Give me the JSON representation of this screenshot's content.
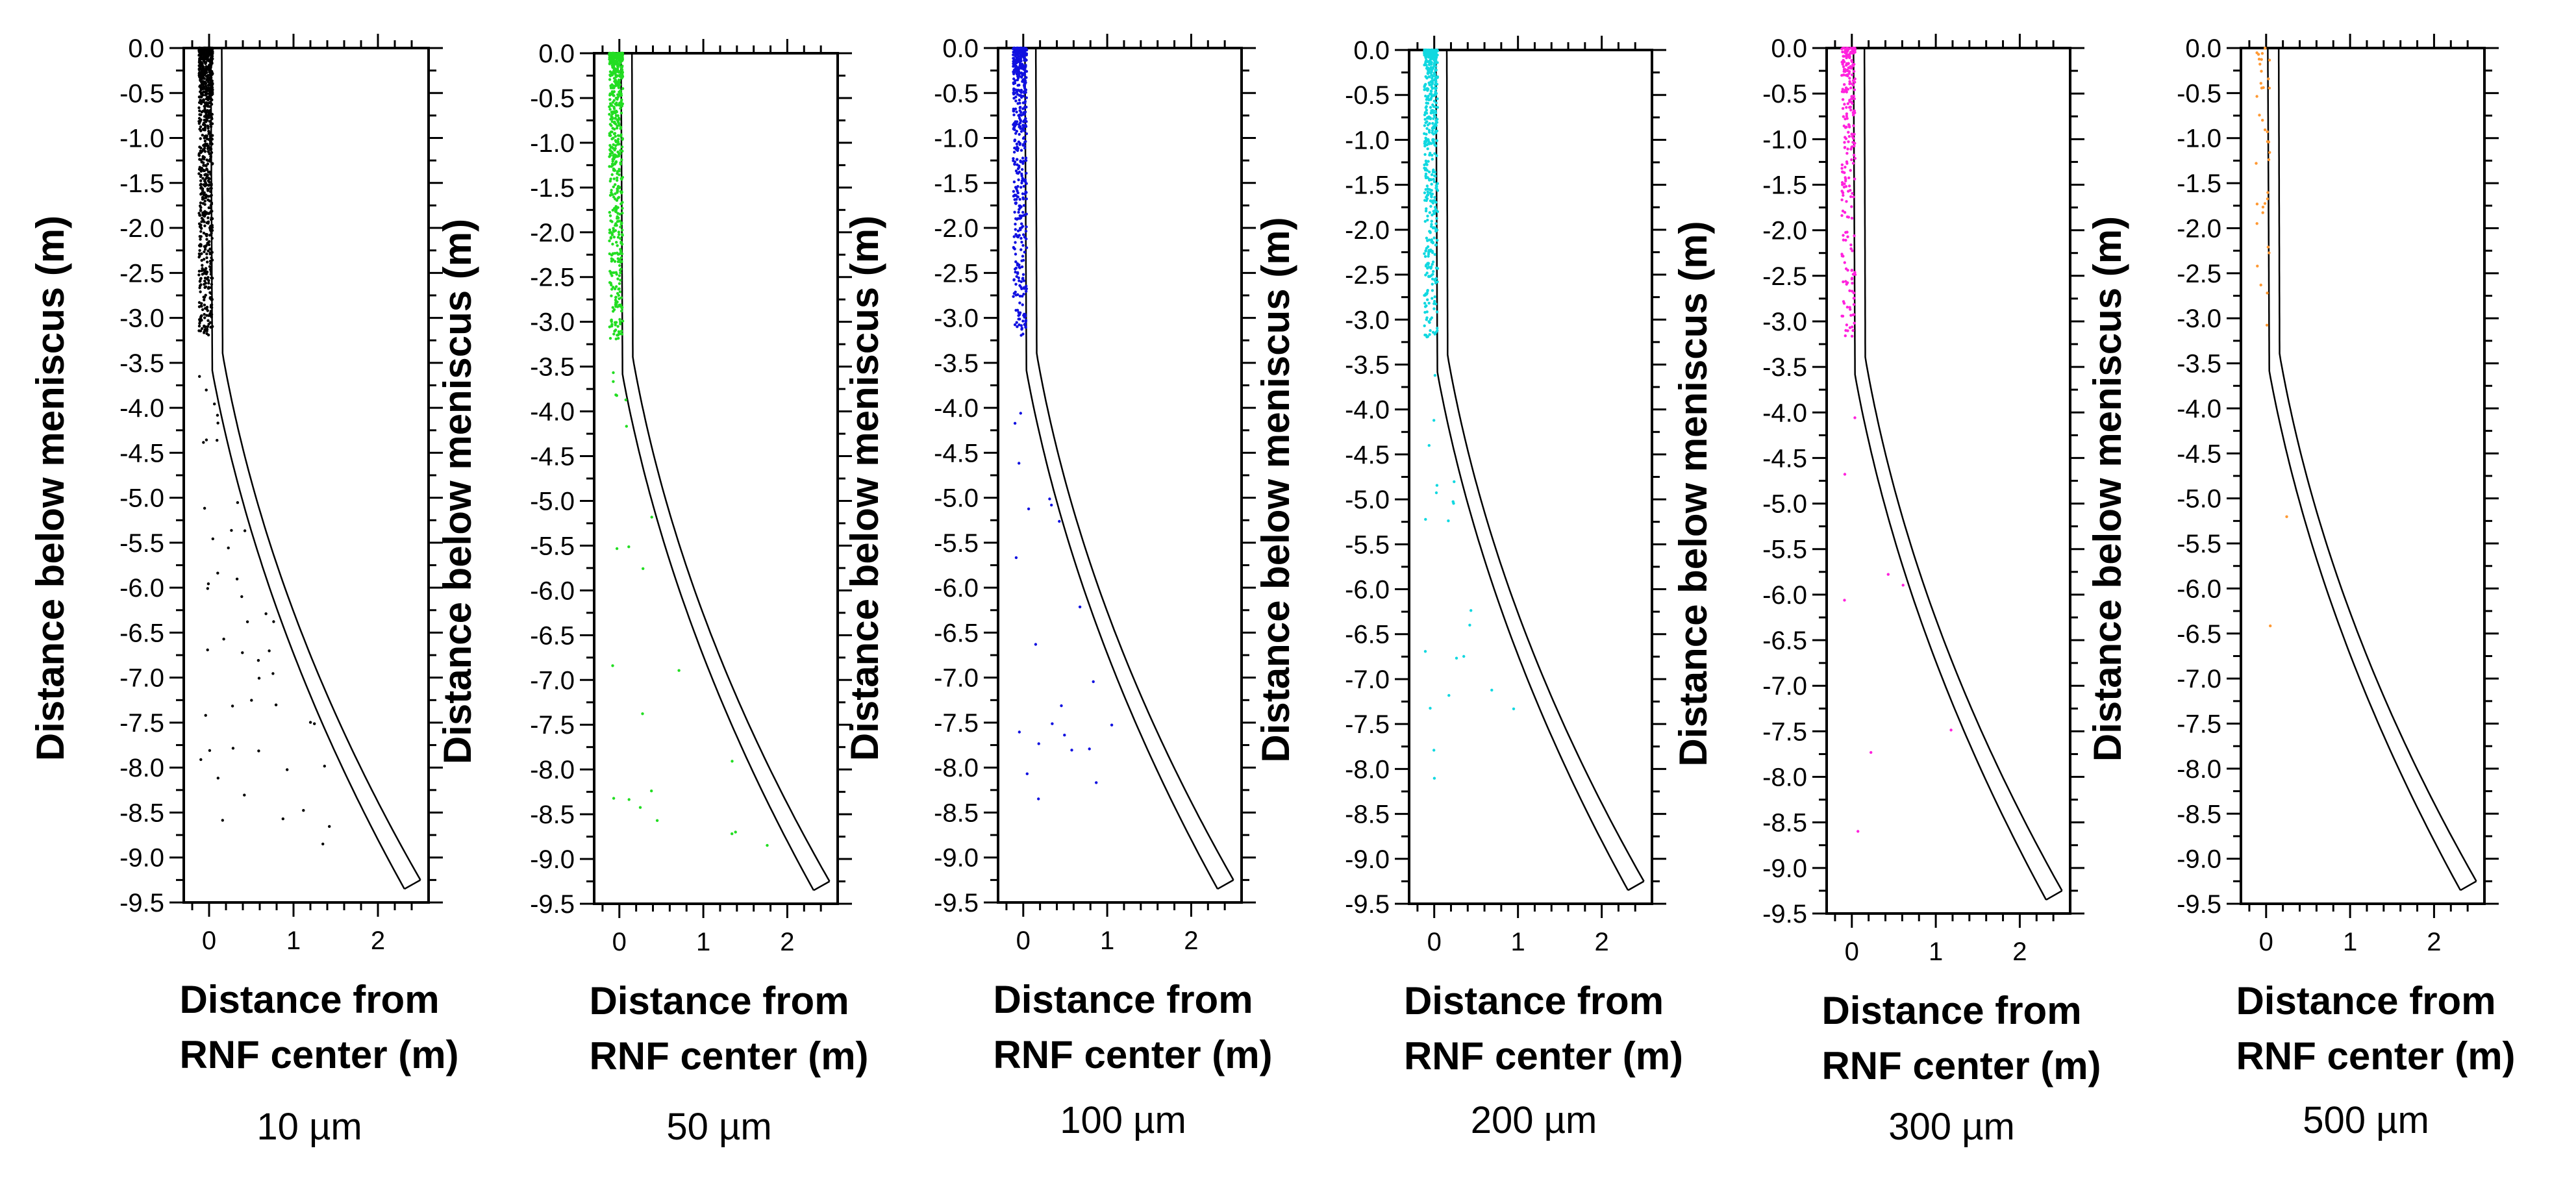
{
  "figure": {
    "xlabel_line1": "Distance from",
    "xlabel_line2": "RNF center (m)",
    "ylabel": "Distance below meniscus (m)"
  },
  "chart_data": [
    {
      "type": "scatter",
      "caption": "10 µm",
      "color": "#000000",
      "particle_count": 900,
      "xlim": [
        -0.3,
        2.6
      ],
      "ylim": [
        -9.5,
        0.0
      ],
      "x_ticks": [
        "0",
        "1",
        "2"
      ],
      "y_ticks": [
        "0.0",
        "-0.5",
        "-1.0",
        "-1.5",
        "-2.0",
        "-2.5",
        "-3.0",
        "-3.5",
        "-4.0",
        "-4.5",
        "-5.0",
        "-5.5",
        "-6.0",
        "-6.5",
        "-7.0",
        "-7.5",
        "-8.0",
        "-8.5",
        "-9.0",
        "-9.5"
      ],
      "xlabel": "Distance from RNF center (m)",
      "ylabel": "Distance below meniscus (m)"
    },
    {
      "type": "scatter",
      "caption": "50 µm",
      "color": "#22dd22",
      "particle_count": 600,
      "xlim": [
        -0.3,
        2.6
      ],
      "ylim": [
        -9.5,
        0.0
      ],
      "x_ticks": [
        "0",
        "1",
        "2"
      ],
      "y_ticks": [
        "0.0",
        "-0.5",
        "-1.0",
        "-1.5",
        "-2.0",
        "-2.5",
        "-3.0",
        "-3.5",
        "-4.0",
        "-4.5",
        "-5.0",
        "-5.5",
        "-6.0",
        "-6.5",
        "-7.0",
        "-7.5",
        "-8.0",
        "-8.5",
        "-9.0",
        "-9.5"
      ],
      "xlabel": "Distance from RNF center (m)",
      "ylabel": "Distance below meniscus (m)"
    },
    {
      "type": "scatter",
      "caption": "100 µm",
      "color": "#1010e0",
      "particle_count": 550,
      "xlim": [
        -0.3,
        2.6
      ],
      "ylim": [
        -9.5,
        0.0
      ],
      "x_ticks": [
        "0",
        "1",
        "2"
      ],
      "y_ticks": [
        "0.0",
        "-0.5",
        "-1.0",
        "-1.5",
        "-2.0",
        "-2.5",
        "-3.0",
        "-3.5",
        "-4.0",
        "-4.5",
        "-5.0",
        "-5.5",
        "-6.0",
        "-6.5",
        "-7.0",
        "-7.5",
        "-8.0",
        "-8.5",
        "-9.0",
        "-9.5"
      ],
      "xlabel": "Distance from RNF center (m)",
      "ylabel": "Distance below meniscus (m)"
    },
    {
      "type": "scatter",
      "caption": "200 µm",
      "color": "#11d8e0",
      "particle_count": 550,
      "xlim": [
        -0.3,
        2.6
      ],
      "ylim": [
        -9.5,
        0.0
      ],
      "x_ticks": [
        "0",
        "1",
        "2"
      ],
      "y_ticks": [
        "0.0",
        "-0.5",
        "-1.0",
        "-1.5",
        "-2.0",
        "-2.5",
        "-3.0",
        "-3.5",
        "-4.0",
        "-4.5",
        "-5.0",
        "-5.5",
        "-6.0",
        "-6.5",
        "-7.0",
        "-7.5",
        "-8.0",
        "-8.5",
        "-9.0",
        "-9.5"
      ],
      "xlabel": "Distance from RNF center (m)",
      "ylabel": "Distance below meniscus (m)"
    },
    {
      "type": "scatter",
      "caption": "300 µm",
      "color": "#ff22dd",
      "particle_count": 260,
      "xlim": [
        -0.3,
        2.6
      ],
      "ylim": [
        -9.5,
        0.0
      ],
      "x_ticks": [
        "0",
        "1",
        "2"
      ],
      "y_ticks": [
        "0.0",
        "-0.5",
        "-1.0",
        "-1.5",
        "-2.0",
        "-2.5",
        "-3.0",
        "-3.5",
        "-4.0",
        "-4.5",
        "-5.0",
        "-5.5",
        "-6.0",
        "-6.5",
        "-7.0",
        "-7.5",
        "-8.0",
        "-8.5",
        "-9.0",
        "-9.5"
      ],
      "xlabel": "Distance from RNF center (m)",
      "ylabel": "Distance below meniscus (m)"
    },
    {
      "type": "scatter",
      "caption": "500 µm",
      "color": "#ff9933",
      "particle_count": 40,
      "xlim": [
        -0.3,
        2.6
      ],
      "ylim": [
        -9.5,
        0.0
      ],
      "x_ticks": [
        "0",
        "1",
        "2"
      ],
      "y_ticks": [
        "0.0",
        "-0.5",
        "-1.0",
        "-1.5",
        "-2.0",
        "-2.5",
        "-3.0",
        "-3.5",
        "-4.0",
        "-4.5",
        "-5.0",
        "-5.5",
        "-6.0",
        "-6.5",
        "-7.0",
        "-7.5",
        "-8.0",
        "-8.5",
        "-9.0",
        "-9.5"
      ],
      "xlabel": "Distance from RNF center (m)",
      "ylabel": "Distance below meniscus (m)"
    }
  ]
}
